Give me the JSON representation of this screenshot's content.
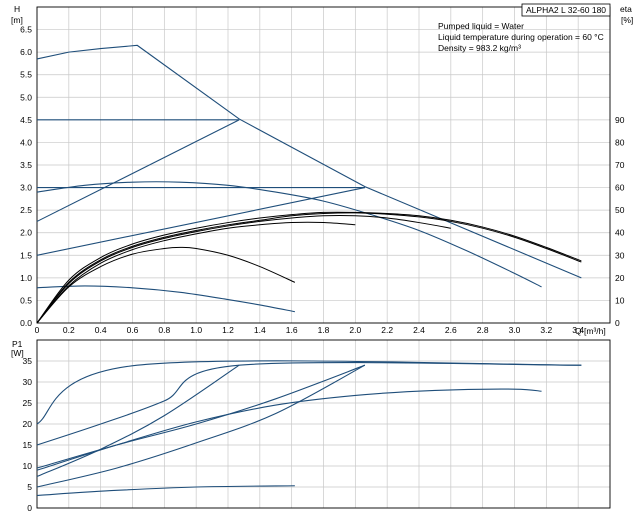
{
  "chart_data": [
    {
      "type": "line",
      "title_box": "ALPHA2 L 32-60 180",
      "notes": [
        "Pumped liquid = Water",
        "Liquid temperature during operation = 60 °C",
        "Density = 983.2 kg/m³"
      ],
      "ylabel": "H",
      "yunit": "[m]",
      "y2label": "eta",
      "y2unit": "[%]",
      "xlabel": "Q",
      "xunit": "[m³/h]",
      "xlim": [
        0,
        3.6
      ],
      "ylim": [
        0,
        7.0
      ],
      "y2lim": [
        0,
        140
      ],
      "xticks": [
        "0",
        "0.2",
        "0.4",
        "0.6",
        "0.8",
        "1.0",
        "1.2",
        "1.4",
        "1.6",
        "1.8",
        "2.0",
        "2.2",
        "2.4",
        "2.6",
        "2.8",
        "3.0",
        "3.2",
        "3.4"
      ],
      "yticks": [
        "0.0",
        "0.5",
        "1.0",
        "1.5",
        "2.0",
        "2.5",
        "3.0",
        "3.5",
        "4.0",
        "4.5",
        "5.0",
        "5.5",
        "6.0",
        "6.5"
      ],
      "y2ticks": [
        "0",
        "10",
        "20",
        "30",
        "40",
        "50",
        "60",
        "70",
        "80",
        "90"
      ],
      "grid": true,
      "series": [
        {
          "axis": "H",
          "color": "#1f4e7a",
          "x": [
            0,
            0.2,
            0.4,
            0.63,
            1.27,
            2.06,
            3.42
          ],
          "y": [
            5.85,
            6.0,
            6.08,
            6.15,
            4.52,
            3.02,
            1.0
          ]
        },
        {
          "axis": "H",
          "color": "#1f4e7a",
          "x": [
            0,
            1.27
          ],
          "y": [
            4.5,
            4.5
          ]
        },
        {
          "axis": "H",
          "color": "#1f4e7a",
          "x": [
            0,
            2.06
          ],
          "y": [
            3.0,
            3.0
          ]
        },
        {
          "axis": "H",
          "color": "#1f4e7a",
          "x": [
            0,
            1.27
          ],
          "y": [
            2.25,
            4.5
          ]
        },
        {
          "axis": "H",
          "color": "#1f4e7a",
          "x": [
            0,
            2.06
          ],
          "y": [
            1.5,
            3.0
          ]
        },
        {
          "axis": "H",
          "color": "#1f4e7a",
          "x": [
            0,
            0.3,
            0.6,
            0.9,
            1.2,
            1.5,
            1.8,
            2.1,
            2.4,
            2.7,
            3.0,
            3.17
          ],
          "y": [
            2.9,
            3.05,
            3.12,
            3.12,
            3.05,
            2.9,
            2.7,
            2.4,
            2.05,
            1.6,
            1.1,
            0.8
          ]
        },
        {
          "axis": "H",
          "color": "#1f4e7a",
          "x": [
            0,
            0.3,
            0.6,
            0.9,
            1.2,
            1.4,
            1.62
          ],
          "y": [
            0.78,
            0.82,
            0.78,
            0.68,
            0.52,
            0.4,
            0.25
          ]
        },
        {
          "axis": "eta",
          "color": "#000000",
          "x": [
            0,
            0.2,
            0.4,
            0.6,
            0.8,
            1.0,
            1.2,
            1.4,
            1.6,
            1.8,
            2.0,
            2.2,
            2.4,
            2.6,
            2.8,
            3.0,
            3.2,
            3.42
          ],
          "y": [
            0,
            19,
            29,
            35,
            39,
            42,
            44.5,
            46.5,
            48,
            49,
            49,
            48.5,
            47.5,
            45.5,
            42.5,
            38.5,
            33.5,
            27.5
          ]
        },
        {
          "axis": "eta",
          "color": "#000000",
          "x": [
            0,
            0.2,
            0.4,
            0.6,
            0.8,
            1.0,
            1.2,
            1.4,
            1.6,
            1.8,
            2.0,
            2.2,
            2.4,
            2.6,
            2.8,
            3.0,
            3.2,
            3.42
          ],
          "y": [
            0,
            18,
            28,
            34,
            38,
            41,
            43.5,
            45.5,
            47.5,
            48.5,
            48.8,
            48.2,
            47,
            45,
            42,
            38,
            33,
            27
          ]
        },
        {
          "axis": "eta",
          "color": "#000000",
          "x": [
            0,
            0.2,
            0.4,
            0.6,
            0.8,
            1.0,
            1.2,
            1.4,
            1.6,
            1.8,
            2.0,
            2.2,
            2.4,
            2.6
          ],
          "y": [
            0,
            17.5,
            27.5,
            33.5,
            37.5,
            40.5,
            43,
            45,
            46.5,
            47.5,
            47.5,
            46.5,
            44.5,
            42
          ]
        },
        {
          "axis": "eta",
          "color": "#000000",
          "x": [
            0,
            0.2,
            0.4,
            0.6,
            0.8,
            1.0,
            1.2,
            1.4,
            1.6,
            1.8,
            2.0
          ],
          "y": [
            0,
            16.5,
            26.5,
            32.5,
            36.5,
            39.5,
            42,
            43.5,
            44.5,
            44.5,
            43.5
          ]
        },
        {
          "axis": "eta",
          "color": "#000000",
          "x": [
            0,
            0.2,
            0.4,
            0.6,
            0.8,
            0.9,
            1.0,
            1.2,
            1.4,
            1.62
          ],
          "y": [
            0,
            16,
            25,
            30.5,
            33,
            33.5,
            33,
            30,
            25,
            18
          ]
        }
      ]
    },
    {
      "type": "line",
      "ylabel": "P1",
      "yunit": "[W]",
      "xlim": [
        0,
        3.6
      ],
      "ylim": [
        0,
        40
      ],
      "yticks": [
        "0",
        "5",
        "10",
        "15",
        "20",
        "25",
        "30",
        "35"
      ],
      "grid": true,
      "series": [
        {
          "color": "#1f4e7a",
          "x": [
            0,
            0.63,
            3.42
          ],
          "y": [
            20,
            34,
            34
          ]
        },
        {
          "color": "#1f4e7a",
          "x": [
            0,
            0.4,
            0.8,
            1.27,
            3.42
          ],
          "y": [
            15,
            20,
            25.5,
            34,
            34
          ]
        },
        {
          "color": "#1f4e7a",
          "x": [
            0,
            0.4,
            0.8,
            1.27
          ],
          "y": [
            7.5,
            14,
            22,
            34
          ]
        },
        {
          "color": "#1f4e7a",
          "x": [
            0,
            0.5,
            1.0,
            1.5,
            2.06
          ],
          "y": [
            9.5,
            15,
            20,
            26,
            34
          ]
        },
        {
          "color": "#1f4e7a",
          "x": [
            0,
            0.5,
            1.0,
            1.5,
            2.06
          ],
          "y": [
            5,
            9.5,
            15.5,
            22.5,
            34
          ]
        },
        {
          "color": "#1f4e7a",
          "x": [
            0,
            0.5,
            1.0,
            1.5,
            2.0,
            2.5,
            3.0,
            3.17
          ],
          "y": [
            9,
            15,
            20.5,
            24.5,
            26.8,
            28,
            28.3,
            27.8
          ]
        },
        {
          "color": "#1f4e7a",
          "x": [
            0,
            0.5,
            1.0,
            1.62
          ],
          "y": [
            3,
            4.2,
            5.0,
            5.3
          ]
        }
      ]
    }
  ]
}
